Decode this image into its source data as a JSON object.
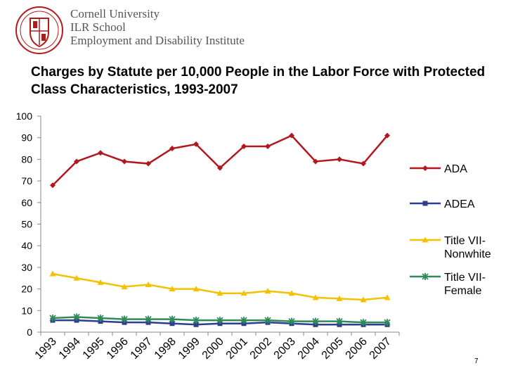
{
  "header": {
    "org_lines": [
      "Cornell University",
      "ILR School",
      "Employment and Disability Institute"
    ],
    "seal": {
      "icon": "cornell-seal-icon",
      "color": "#b31b1b"
    }
  },
  "page_number": "7",
  "chart_data": {
    "type": "line",
    "title": "Charges by Statute per 10,000 People in the Labor Force with Protected Class Characteristics, 1993-2007",
    "categories": [
      "1993",
      "1994",
      "1995",
      "1996",
      "1997",
      "1998",
      "1999",
      "2000",
      "2001",
      "2002",
      "2003",
      "2004",
      "2005",
      "2006",
      "2007"
    ],
    "ylim": [
      0,
      100
    ],
    "yticks": [
      0,
      10,
      20,
      30,
      40,
      50,
      60,
      70,
      80,
      90,
      100
    ],
    "grid": false,
    "legend_position": "right",
    "series": [
      {
        "name": "ADA",
        "color": "#b0171f",
        "marker": "diamond",
        "values": [
          68,
          79,
          83,
          79,
          78,
          85,
          87,
          76,
          86,
          86,
          91,
          79,
          80,
          78,
          91
        ]
      },
      {
        "name": "ADEA",
        "color": "#2e3d8f",
        "marker": "square",
        "values": [
          5.5,
          5.5,
          5,
          4.5,
          4.5,
          4,
          3.5,
          4,
          4,
          4.5,
          4,
          3.5,
          3.5,
          3.5,
          3.5
        ]
      },
      {
        "name": "Title VII-Nonwhite",
        "color": "#f2c200",
        "marker": "triangle",
        "values": [
          27,
          25,
          23,
          21,
          22,
          20,
          20,
          18,
          18,
          19,
          18,
          16,
          15.5,
          15,
          16
        ]
      },
      {
        "name": "Title VII-Female",
        "color": "#2e8b57",
        "marker": "star",
        "values": [
          6.5,
          7,
          6.5,
          6,
          6,
          6,
          5.5,
          5.5,
          5.5,
          5.5,
          5,
          5,
          5,
          4.5,
          4.5
        ]
      }
    ]
  }
}
